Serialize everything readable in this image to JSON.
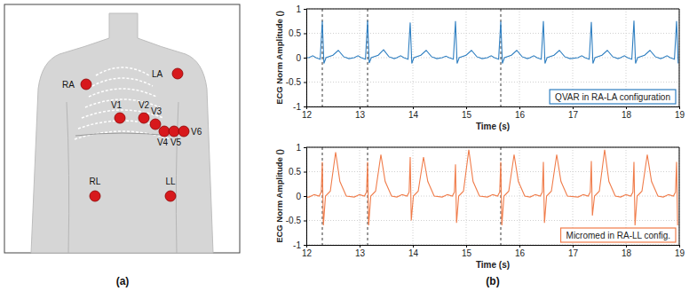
{
  "diagram": {
    "caption": "(a)",
    "electrodes": [
      "RA",
      "LA",
      "V1",
      "V2",
      "V3",
      "V4",
      "V5",
      "V6",
      "RL",
      "LL"
    ]
  },
  "chart_caption": "(b)",
  "chart_data": [
    {
      "type": "line",
      "x_label": "Time (s)",
      "y_label": "ECG Norm Amplitude ()",
      "x": [
        12.0,
        12.05,
        12.12,
        12.18,
        12.26,
        12.3,
        12.33,
        12.37,
        12.5,
        12.6,
        12.7,
        12.8,
        12.9,
        12.97,
        13.03,
        13.11,
        13.15,
        13.18,
        13.22,
        13.35,
        13.45,
        13.55,
        13.65,
        13.7,
        13.77,
        13.83,
        13.91,
        13.95,
        13.98,
        14.02,
        14.15,
        14.25,
        14.35,
        14.45,
        14.55,
        14.62,
        14.68,
        14.76,
        14.8,
        14.83,
        14.87,
        15.0,
        15.1,
        15.2,
        15.3,
        15.4,
        15.47,
        15.53,
        15.61,
        15.65,
        15.68,
        15.72,
        15.85,
        15.95,
        16.05,
        16.15,
        16.2,
        16.27,
        16.33,
        16.41,
        16.45,
        16.48,
        16.52,
        16.65,
        16.75,
        16.85,
        16.95,
        17.1,
        17.17,
        17.23,
        17.31,
        17.35,
        17.38,
        17.42,
        17.55,
        17.65,
        17.75,
        17.85,
        17.9,
        17.97,
        18.03,
        18.11,
        18.15,
        18.18,
        18.22,
        18.35,
        18.45,
        18.55,
        18.65,
        18.7,
        18.77,
        18.83,
        18.91,
        18.95,
        18.98
      ],
      "series": [
        {
          "name": "QVAR in RA-LA configuration",
          "color": "#2f7fc1",
          "values": [
            0,
            0,
            0.04,
            0,
            -0.03,
            0.75,
            -0.12,
            0,
            0.05,
            0.15,
            0.02,
            -0.02,
            0,
            0.04,
            0,
            -0.03,
            0.76,
            -0.11,
            0,
            0.05,
            0.16,
            0.02,
            -0.02,
            0,
            0.04,
            0,
            -0.03,
            0.72,
            -0.12,
            0,
            0.05,
            0.15,
            0.02,
            -0.02,
            0,
            0.03,
            0,
            -0.03,
            0.75,
            -0.12,
            0,
            0.05,
            0.15,
            0.02,
            -0.02,
            0,
            0.04,
            0,
            -0.03,
            0.74,
            -0.12,
            0,
            0.05,
            0.15,
            0.02,
            -0.02,
            0,
            0.04,
            0,
            -0.03,
            0.75,
            -0.12,
            0,
            0.05,
            0.15,
            0.02,
            -0.02,
            0,
            0.04,
            0,
            -0.03,
            0.73,
            -0.12,
            0,
            0.05,
            0.15,
            0.02,
            -0.02,
            0,
            0.04,
            0,
            -0.03,
            0.76,
            -0.12,
            0,
            0.05,
            0.15,
            0.02,
            -0.02,
            0,
            0.04,
            0,
            -0.03,
            0.75,
            -0.12
          ]
        }
      ],
      "xlim": [
        12,
        19
      ],
      "ylim": [
        -1,
        1
      ],
      "xticks": [
        12,
        13,
        14,
        15,
        16,
        17,
        18,
        19
      ],
      "yticks": [
        -1,
        -0.5,
        0,
        0.5,
        1
      ],
      "grid": true,
      "legend": "lower right",
      "vlines": [
        12.3,
        13.15,
        15.65
      ]
    },
    {
      "type": "line",
      "x_label": "Time (s)",
      "y_label": "ECG Norm Amplitude ()",
      "x": [
        12.0,
        12.05,
        12.15,
        12.24,
        12.28,
        12.3,
        12.32,
        12.36,
        12.45,
        12.55,
        12.63,
        12.75,
        12.9,
        13.0,
        13.09,
        13.13,
        13.15,
        13.17,
        13.21,
        13.3,
        13.4,
        13.48,
        13.6,
        13.7,
        13.8,
        13.89,
        13.93,
        13.95,
        13.97,
        14.01,
        14.1,
        14.2,
        14.28,
        14.4,
        14.55,
        14.65,
        14.74,
        14.78,
        14.8,
        14.82,
        14.86,
        14.95,
        15.05,
        15.13,
        15.25,
        15.4,
        15.5,
        15.59,
        15.63,
        15.65,
        15.67,
        15.71,
        15.8,
        15.9,
        15.98,
        16.1,
        16.2,
        16.3,
        16.39,
        16.43,
        16.45,
        16.47,
        16.51,
        16.6,
        16.7,
        16.78,
        16.9,
        17.1,
        17.2,
        17.29,
        17.33,
        17.35,
        17.37,
        17.41,
        17.5,
        17.6,
        17.68,
        17.8,
        17.9,
        18.0,
        18.09,
        18.13,
        18.15,
        18.17,
        18.21,
        18.3,
        18.4,
        18.48,
        18.6,
        18.7,
        18.8,
        18.89,
        18.93,
        18.95,
        18.97
      ],
      "series": [
        {
          "name": "Micromed in RA-LL config.",
          "color": "#f07c4a",
          "values": [
            -0.02,
            -0.02,
            0.03,
            0,
            0.08,
            0.7,
            -0.6,
            0,
            0.1,
            0.9,
            0.3,
            0,
            -0.02,
            0.03,
            0,
            0.08,
            0.7,
            -0.6,
            0,
            0.1,
            0.85,
            0.3,
            0,
            -0.02,
            0.03,
            0,
            0.08,
            0.8,
            -0.5,
            0,
            0.1,
            0.8,
            0.3,
            0,
            -0.02,
            0.03,
            0,
            0.08,
            0.65,
            -0.55,
            0,
            0.1,
            0.95,
            0.3,
            0,
            -0.02,
            0.03,
            0,
            0.08,
            0.7,
            -0.6,
            0,
            0.1,
            0.85,
            0.3,
            0,
            -0.02,
            0.03,
            0,
            0.08,
            0.7,
            -0.55,
            0,
            0.1,
            0.85,
            0.3,
            0,
            -0.02,
            0.03,
            0,
            0.08,
            0.72,
            -0.4,
            0,
            0.1,
            0.95,
            0.3,
            0,
            -0.02,
            0.03,
            0,
            0.08,
            0.7,
            -0.6,
            0,
            0.1,
            0.85,
            0.3,
            0,
            -0.02,
            0.03,
            0,
            0.08,
            0.7,
            -0.6
          ]
        }
      ],
      "xlim": [
        12,
        19
      ],
      "ylim": [
        -1,
        1
      ],
      "xticks": [
        12,
        13,
        14,
        15,
        16,
        17,
        18,
        19
      ],
      "yticks": [
        -1,
        -0.5,
        0,
        0.5,
        1
      ],
      "grid": true,
      "legend": "lower right",
      "vlines": [
        12.3,
        13.15,
        15.65
      ]
    }
  ]
}
